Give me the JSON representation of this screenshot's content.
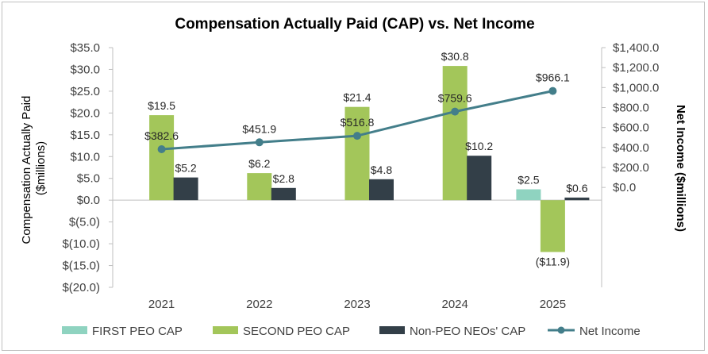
{
  "chart_data": {
    "type": "bar",
    "title": "Compensation Actually Paid (CAP) vs. Net Income",
    "categories": [
      "2021",
      "2022",
      "2023",
      "2024",
      "2025"
    ],
    "ylabel": "Compensation Actually Paid ($millions)",
    "ylabel_lines": [
      "Compensation Actually Paid",
      "($millions)"
    ],
    "y2label": "Net Income ($millions)",
    "ylim": [
      -20,
      35
    ],
    "y2lim": [
      -1000,
      1400
    ],
    "yticks": [
      35,
      30,
      25,
      20,
      15,
      10,
      5,
      0,
      -5,
      -10,
      -15,
      -20
    ],
    "ytick_labels": [
      "$35.0",
      "$30.0",
      "$25.0",
      "$20.0",
      "$15.0",
      "$10.0",
      "$5.0",
      "$0.0",
      "$(5.0)",
      "$(10.0)",
      "$(15.0)",
      "$(20.0)"
    ],
    "y2ticks": [
      1400,
      1200,
      1000,
      800,
      600,
      400,
      200,
      0
    ],
    "y2tick_labels": [
      "$1,400.0",
      "$1,200.0",
      "$1,000.0",
      "$800.0",
      "$600.0",
      "$400.0",
      "$200.0",
      "$0.0"
    ],
    "grid": false,
    "legend_position": "bottom",
    "series": [
      {
        "name": "FIRST PEO CAP",
        "type": "bar",
        "axis": "left",
        "color": "#8fd3c0",
        "values": [
          null,
          null,
          null,
          null,
          2.5
        ],
        "labels": [
          null,
          null,
          null,
          null,
          "$2.5"
        ]
      },
      {
        "name": "SECOND PEO CAP",
        "type": "bar",
        "axis": "left",
        "color": "#a3c65a",
        "values": [
          19.5,
          6.2,
          21.4,
          30.8,
          -11.9
        ],
        "labels": [
          "$19.5",
          "$6.2",
          "$21.4",
          "$30.8",
          "($11.9)"
        ]
      },
      {
        "name": "Non-PEO NEOs' CAP",
        "type": "bar",
        "axis": "left",
        "color": "#333f48",
        "values": [
          5.2,
          2.8,
          4.8,
          10.2,
          0.6
        ],
        "labels": [
          "$5.2",
          "$2.8",
          "$4.8",
          "$10.2",
          "$0.6"
        ]
      },
      {
        "name": "Net Income",
        "type": "line",
        "axis": "right",
        "color": "#437e8a",
        "values": [
          382.6,
          451.9,
          516.8,
          759.6,
          966.1
        ],
        "labels": [
          "$382.6",
          "$451.9",
          "$516.8",
          "$759.6",
          "$966.1"
        ]
      }
    ]
  }
}
